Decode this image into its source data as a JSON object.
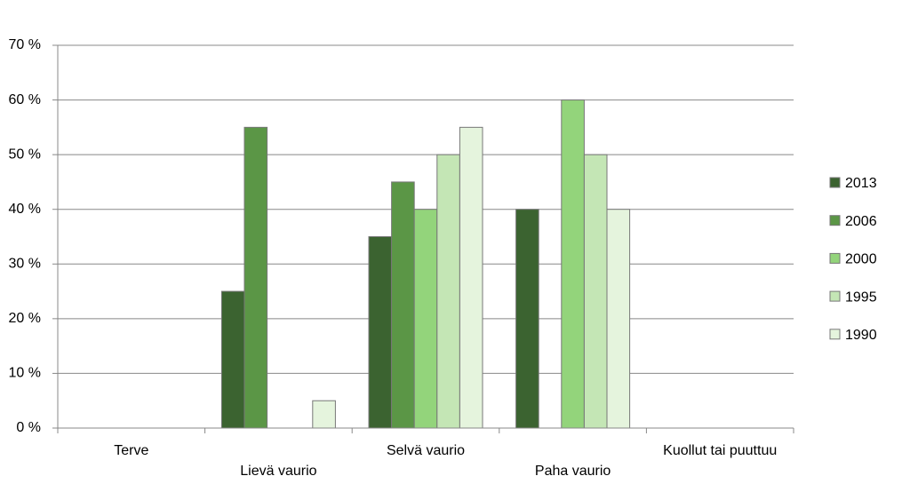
{
  "chart_data": {
    "type": "bar",
    "categories": [
      "Terve",
      "Lievä vaurio",
      "Selvä vaurio",
      "Paha vaurio",
      "Kuollut tai puuttuu"
    ],
    "series": [
      {
        "name": "2013",
        "color": "#3b6330",
        "values": [
          0,
          25,
          35,
          40,
          0
        ]
      },
      {
        "name": "2006",
        "color": "#5b9646",
        "values": [
          0,
          55,
          45,
          0,
          0
        ]
      },
      {
        "name": "2000",
        "color": "#93d47b",
        "values": [
          0,
          0,
          40,
          60,
          0
        ]
      },
      {
        "name": "1995",
        "color": "#c4e6b5",
        "values": [
          0,
          0,
          50,
          50,
          0
        ]
      },
      {
        "name": "1990",
        "color": "#e5f4dd",
        "values": [
          0,
          5,
          55,
          40,
          0
        ]
      }
    ],
    "ylim": [
      0,
      70
    ],
    "yticks": [
      {
        "value": 0,
        "label": "0 %"
      },
      {
        "value": 10,
        "label": "10 %"
      },
      {
        "value": 20,
        "label": "20 %"
      },
      {
        "value": 30,
        "label": "30 %"
      },
      {
        "value": 40,
        "label": "40 %"
      },
      {
        "value": 50,
        "label": "50 %"
      },
      {
        "value": 60,
        "label": "60 %"
      },
      {
        "value": 70,
        "label": "70 %"
      }
    ],
    "grid": true,
    "legend": "right"
  }
}
